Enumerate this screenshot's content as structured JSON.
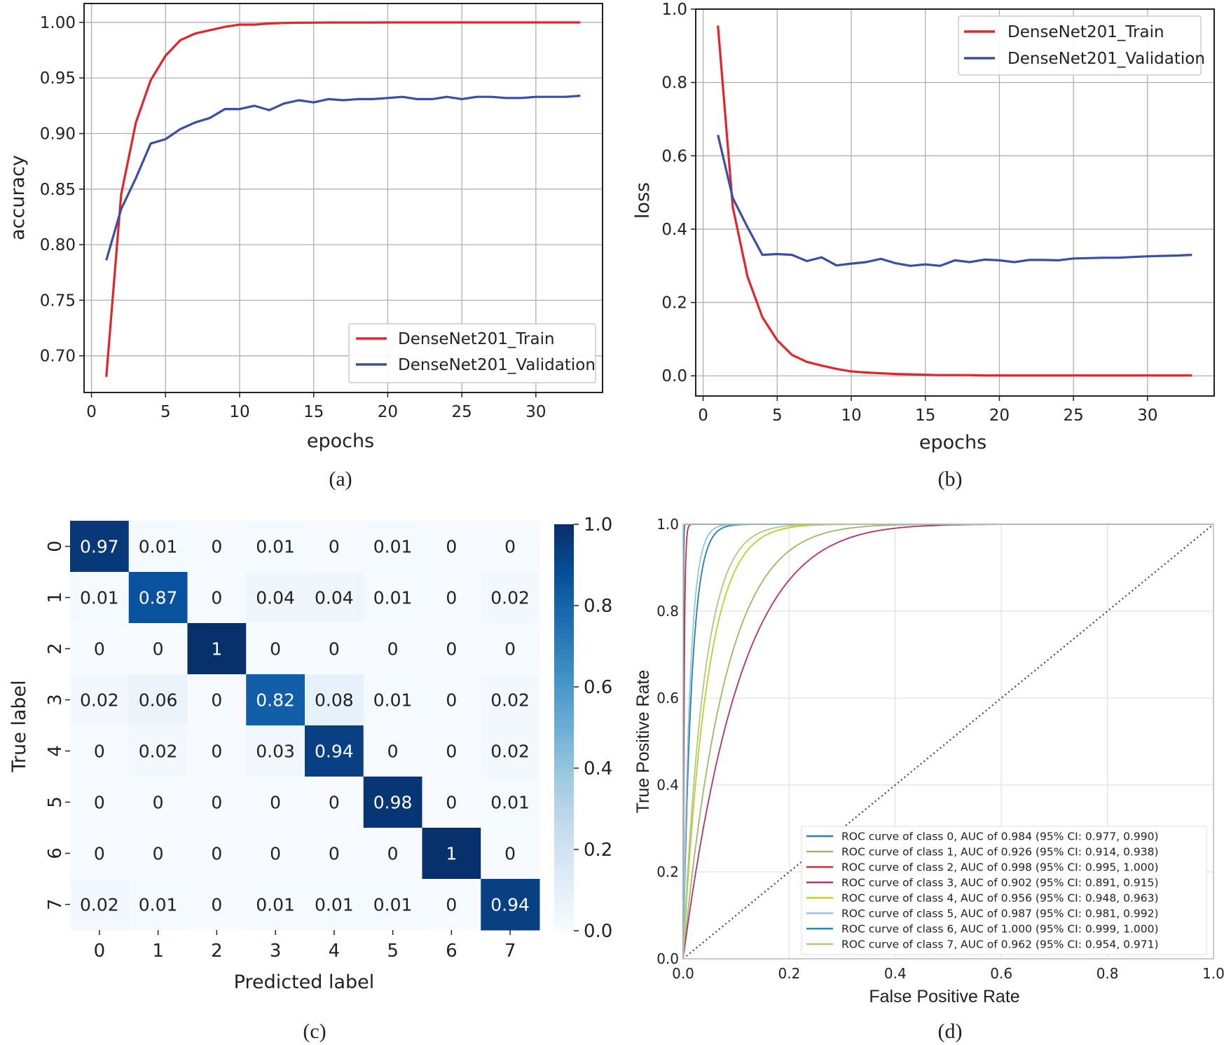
{
  "captions": [
    "(a)",
    "(b)",
    "(c)",
    "(d)"
  ],
  "colors": {
    "train": "#e3242b",
    "validation": "#3a4ea6"
  },
  "chart_data": [
    {
      "type": "line",
      "panel": "(a)",
      "xlabel": "epochs",
      "ylabel": "accuracy",
      "xlim": [
        -0.5,
        34.5
      ],
      "ylim": [
        0.667,
        1.017
      ],
      "xticks": [
        0,
        5,
        10,
        15,
        20,
        25,
        30
      ],
      "yticks": [
        0.7,
        0.75,
        0.8,
        0.85,
        0.9,
        0.95,
        1.0
      ],
      "ytick_labels": [
        "0.70",
        "0.75",
        "0.80",
        "0.85",
        "0.90",
        "0.95",
        "1.00"
      ],
      "grid": true,
      "legend_position": "lower-right",
      "x": [
        1,
        2,
        3,
        4,
        5,
        6,
        7,
        8,
        9,
        10,
        11,
        12,
        13,
        14,
        15,
        16,
        17,
        18,
        19,
        20,
        21,
        22,
        23,
        24,
        25,
        26,
        27,
        28,
        29,
        30,
        31,
        32,
        33
      ],
      "series": [
        {
          "name": "DenseNet201_Train",
          "color": "#e3242b",
          "values": [
            0.681,
            0.845,
            0.91,
            0.948,
            0.97,
            0.984,
            0.99,
            0.993,
            0.996,
            0.998,
            0.998,
            0.999,
            0.9995,
            0.9997,
            0.9998,
            0.9999,
            0.9999,
            0.9999,
            0.9999,
            1.0,
            1.0,
            1.0,
            1.0,
            1.0,
            1.0,
            1.0,
            1.0,
            1.0,
            1.0,
            1.0,
            1.0,
            1.0,
            1.0
          ]
        },
        {
          "name": "DenseNet201_Validation",
          "color": "#3a4ea6",
          "values": [
            0.786,
            0.832,
            0.86,
            0.891,
            0.895,
            0.904,
            0.91,
            0.914,
            0.922,
            0.922,
            0.925,
            0.921,
            0.927,
            0.93,
            0.928,
            0.931,
            0.93,
            0.931,
            0.931,
            0.932,
            0.933,
            0.931,
            0.931,
            0.933,
            0.931,
            0.933,
            0.933,
            0.932,
            0.932,
            0.933,
            0.933,
            0.933,
            0.934
          ]
        }
      ]
    },
    {
      "type": "line",
      "panel": "(b)",
      "xlabel": "epochs",
      "ylabel": "loss",
      "xlim": [
        -0.5,
        34.5
      ],
      "ylim": [
        -0.055,
        1.0
      ],
      "xticks": [
        0,
        5,
        10,
        15,
        20,
        25,
        30
      ],
      "yticks": [
        0.0,
        0.2,
        0.4,
        0.6,
        0.8,
        1.0
      ],
      "ytick_labels": [
        "0.0",
        "0.2",
        "0.4",
        "0.6",
        "0.8",
        "1.0"
      ],
      "grid": true,
      "legend_position": "upper-right",
      "x": [
        1,
        2,
        3,
        4,
        5,
        6,
        7,
        8,
        9,
        10,
        11,
        12,
        13,
        14,
        15,
        16,
        17,
        18,
        19,
        20,
        21,
        22,
        23,
        24,
        25,
        26,
        27,
        28,
        29,
        30,
        31,
        32,
        33
      ],
      "series": [
        {
          "name": "DenseNet201_Train",
          "color": "#e3242b",
          "values": [
            0.955,
            0.46,
            0.27,
            0.16,
            0.097,
            0.057,
            0.038,
            0.028,
            0.019,
            0.012,
            0.009,
            0.007,
            0.005,
            0.004,
            0.003,
            0.002,
            0.002,
            0.002,
            0.001,
            0.001,
            0.001,
            0.001,
            0.001,
            0.001,
            0.001,
            0.001,
            0.001,
            0.001,
            0.001,
            0.001,
            0.001,
            0.001,
            0.001
          ]
        },
        {
          "name": "DenseNet201_Validation",
          "color": "#3a4ea6",
          "values": [
            0.657,
            0.485,
            0.405,
            0.33,
            0.332,
            0.33,
            0.313,
            0.323,
            0.301,
            0.306,
            0.31,
            0.319,
            0.307,
            0.3,
            0.304,
            0.3,
            0.315,
            0.31,
            0.317,
            0.315,
            0.31,
            0.316,
            0.316,
            0.315,
            0.32,
            0.321,
            0.322,
            0.322,
            0.324,
            0.326,
            0.327,
            0.328,
            0.33
          ]
        }
      ]
    },
    {
      "type": "heatmap",
      "panel": "(c)",
      "xlabel": "Predicted label",
      "ylabel": "True label",
      "x_categories": [
        "0",
        "1",
        "2",
        "3",
        "4",
        "5",
        "6",
        "7"
      ],
      "y_categories": [
        "0",
        "1",
        "2",
        "3",
        "4",
        "5",
        "6",
        "7"
      ],
      "colorbar_ticks": [
        0.0,
        0.2,
        0.4,
        0.6,
        0.8,
        1.0
      ],
      "colorbar_labels": [
        "0.0",
        "0.2",
        "0.4",
        "0.6",
        "0.8",
        "1.0"
      ],
      "colormap": "Blues",
      "vmin": 0,
      "vmax": 1,
      "values": [
        [
          0.97,
          0.01,
          0,
          0.01,
          0,
          0.01,
          0,
          0
        ],
        [
          0.01,
          0.87,
          0,
          0.04,
          0.04,
          0.01,
          0,
          0.02
        ],
        [
          0,
          0,
          1,
          0,
          0,
          0,
          0,
          0
        ],
        [
          0.02,
          0.06,
          0,
          0.82,
          0.08,
          0.01,
          0,
          0.02
        ],
        [
          0,
          0.02,
          0,
          0.03,
          0.94,
          0,
          0,
          0.02
        ],
        [
          0,
          0,
          0,
          0,
          0,
          0.98,
          0,
          0.01
        ],
        [
          0,
          0,
          0,
          0,
          0,
          0,
          1,
          0
        ],
        [
          0.02,
          0.01,
          0,
          0.01,
          0.01,
          0.01,
          0,
          0.94
        ]
      ]
    },
    {
      "type": "line",
      "panel": "(d)",
      "xlabel": "False Positive Rate",
      "ylabel": "True Positive Rate",
      "xlim": [
        0.0,
        1.0
      ],
      "ylim": [
        0.0,
        1.0
      ],
      "xticks": [
        0.0,
        0.2,
        0.4,
        0.6,
        0.8,
        1.0
      ],
      "yticks": [
        0.0,
        0.2,
        0.4,
        0.6,
        0.8,
        1.0
      ],
      "tick_labels": [
        "0.0",
        "0.2",
        "0.4",
        "0.6",
        "0.8",
        "1.0"
      ],
      "grid": true,
      "legend_position": "lower-right",
      "diagonal": "dotted",
      "series": [
        {
          "name": "ROC curve of class 0, AUC of 0.984 (95% CI: 0.977, 0.990)",
          "color": "#2a7ab0",
          "auc": 0.984
        },
        {
          "name": "ROC curve of class 1, AUC of 0.926 (95% CI: 0.914, 0.938)",
          "color": "#9cb86a",
          "auc": 0.926
        },
        {
          "name": "ROC curve of class 2, AUC of 0.998 (95% CI: 0.995, 1.000)",
          "color": "#d42a3a",
          "auc": 0.998
        },
        {
          "name": "ROC curve of class 3, AUC of 0.902 (95% CI: 0.891, 0.915)",
          "color": "#b8306a",
          "auc": 0.902
        },
        {
          "name": "ROC curve of class 4, AUC of 0.956 (95% CI: 0.948, 0.963)",
          "color": "#c8c82a",
          "auc": 0.956
        },
        {
          "name": "ROC curve of class 5, AUC of 0.987 (95% CI: 0.981, 0.992)",
          "color": "#8ec8e0",
          "auc": 0.987
        },
        {
          "name": "ROC curve of class 6, AUC of 1.000 (95% CI: 0.999, 1.000)",
          "color": "#1e8ab4",
          "auc": 1.0
        },
        {
          "name": "ROC curve of class 7, AUC of 0.962 (95% CI: 0.954, 0.971)",
          "color": "#a8cc7c",
          "auc": 0.962
        }
      ]
    }
  ]
}
